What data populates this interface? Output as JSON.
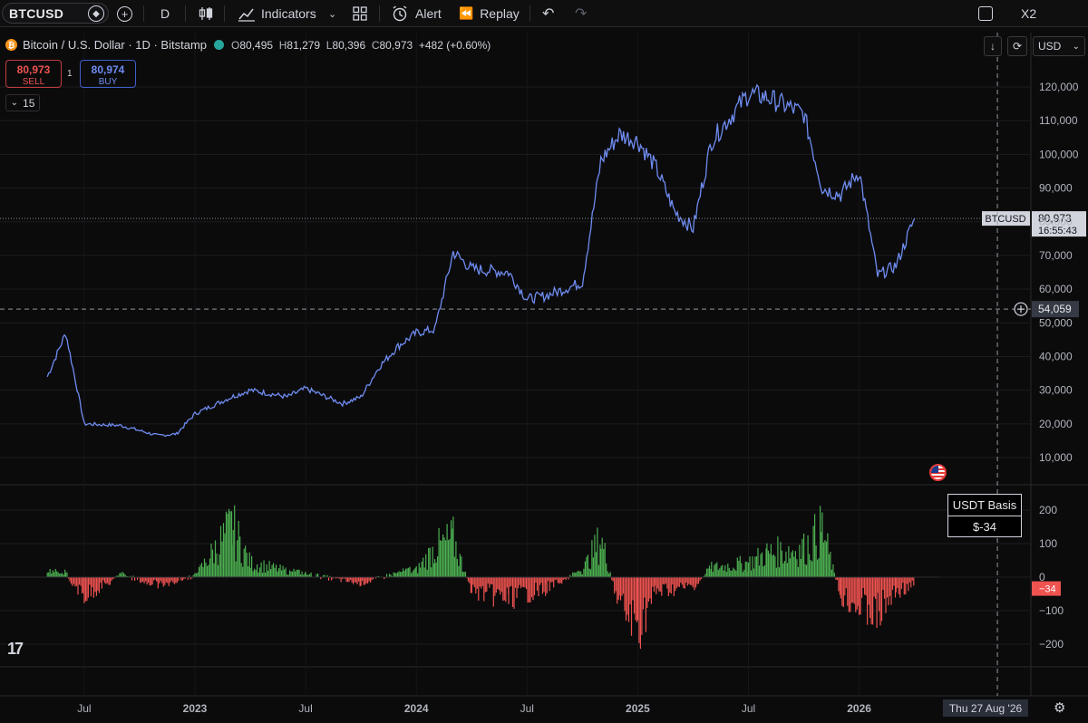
{
  "toolbar": {
    "symbol": "BTCUSD",
    "interval": "D",
    "indicators_label": "Indicators",
    "alert_label": "Alert",
    "replay_label": "Replay",
    "layout_label": "X2"
  },
  "legend": {
    "title": "Bitcoin / U.S. Dollar · 1D · Bitstamp",
    "open_key": "O",
    "open": "80,495",
    "high_key": "H",
    "high": "81,279",
    "low_key": "L",
    "low": "80,396",
    "close_key": "C",
    "close": "80,973",
    "change": "+482 (+0.60%)"
  },
  "trade": {
    "sell_price": "80,973",
    "sell_label": "SELL",
    "buy_price": "80,974",
    "buy_label": "BUY",
    "spread": "1"
  },
  "collapse_count": "15",
  "currency": "USD",
  "price_axis": {
    "ticks": [
      120000,
      110000,
      100000,
      90000,
      80000,
      70000,
      60000,
      50000,
      40000,
      30000,
      20000,
      10000
    ],
    "tick_labels": [
      "120,000",
      "110,000",
      "100,000",
      "90,000",
      "80,000",
      "70,000",
      "60,000",
      "50,000",
      "40,000",
      "30,000",
      "20,000",
      "10,000"
    ],
    "last_symbol": "BTCUSD",
    "last_price": "80,973",
    "countdown": "16:55:43",
    "crosshair_price": "54,059",
    "crosshair_value": 54059
  },
  "indicator": {
    "name": "USDT Basis",
    "value_label": "$-34",
    "last_value_badge": "−34",
    "ticks": [
      200,
      100,
      0,
      -100,
      -200
    ],
    "tick_labels": [
      "200",
      "100",
      "0",
      "−100",
      "−200"
    ]
  },
  "time_axis": {
    "labels": [
      "Jul",
      "2023",
      "Jul",
      "2024",
      "Jul",
      "2025",
      "Jul",
      "2026"
    ],
    "crosshair_date": "Thu 27 Aug '26"
  },
  "colors": {
    "price_line": "#6f8cf0",
    "hist_positive": "#4caf50",
    "hist_negative": "#ef5350",
    "sell": "#ef5350",
    "buy": "#6f8cf0",
    "background": "#0b0b0c"
  },
  "chart_data": [
    {
      "type": "line",
      "x": [
        "2022-05",
        "2022-06",
        "2022-07",
        "2022-09",
        "2022-11",
        "2022-12",
        "2023-01",
        "2023-03",
        "2023-04",
        "2023-06",
        "2023-07",
        "2023-09",
        "2023-10",
        "2023-11",
        "2023-12",
        "2024-01",
        "2024-02",
        "2024-03",
        "2024-04",
        "2024-06",
        "2024-07",
        "2024-08",
        "2024-10",
        "2024-11",
        "2024-12",
        "2025-01",
        "2025-02",
        "2025-03",
        "2025-04",
        "2025-05",
        "2025-07",
        "2025-08",
        "2025-10",
        "2025-11",
        "2025-12",
        "2026-01",
        "2026-02",
        "2026-03",
        "2026-04"
      ],
      "series": [
        {
          "values": [
            34000,
            47000,
            20000,
            19500,
            16500,
            17000,
            23000,
            28000,
            30000,
            28000,
            30500,
            26000,
            28000,
            37000,
            43000,
            47000,
            48000,
            71000,
            66000,
            65000,
            57000,
            58000,
            62000,
            98000,
            106000,
            104000,
            96000,
            83000,
            78000,
            104000,
            118000,
            117000,
            112000,
            90000,
            88000,
            95000,
            64000,
            67000,
            80973
          ]
        }
      ],
      "ylim": [
        0,
        128000
      ],
      "grid": true
    },
    {
      "type": "bar",
      "x": [
        "2022-05",
        "2022-06",
        "2022-07",
        "2022-09",
        "2022-11",
        "2023-01",
        "2023-03",
        "2023-04",
        "2023-07",
        "2023-10",
        "2024-01",
        "2024-02",
        "2024-03",
        "2024-04",
        "2024-06",
        "2024-08",
        "2024-10",
        "2024-11",
        "2024-12",
        "2025-01",
        "2025-02",
        "2025-04",
        "2025-05",
        "2025-07",
        "2025-08",
        "2025-10",
        "2025-11",
        "2025-12",
        "2026-01",
        "2026-02",
        "2026-03",
        "2026-04"
      ],
      "series": [
        {
          "values": [
            20,
            15,
            -80,
            10,
            -30,
            5,
            210,
            60,
            10,
            -20,
            30,
            120,
            160,
            -60,
            -90,
            -50,
            30,
            160,
            -120,
            -210,
            -60,
            -40,
            40,
            60,
            100,
            120,
            200,
            -80,
            -120,
            -160,
            -60,
            -34
          ]
        }
      ],
      "ylim": [
        -250,
        270
      ],
      "grid": true
    }
  ]
}
